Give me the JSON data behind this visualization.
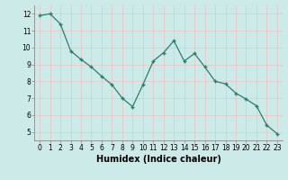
{
  "x": [
    0,
    1,
    2,
    3,
    4,
    5,
    6,
    7,
    8,
    9,
    10,
    11,
    12,
    13,
    14,
    15,
    16,
    17,
    18,
    19,
    20,
    21,
    22,
    23
  ],
  "y": [
    11.9,
    12.0,
    11.4,
    9.8,
    9.3,
    8.85,
    8.3,
    7.8,
    7.0,
    6.5,
    7.8,
    9.2,
    9.7,
    10.4,
    9.2,
    9.65,
    8.85,
    8.0,
    7.85,
    7.3,
    6.95,
    6.55,
    5.4,
    4.9
  ],
  "line_color": "#2d7d6e",
  "marker": "+",
  "marker_size": 3.5,
  "marker_lw": 1.0,
  "line_width": 0.9,
  "xlabel": "Humidex (Indice chaleur)",
  "xlim": [
    -0.5,
    23.5
  ],
  "ylim": [
    4.5,
    12.5
  ],
  "yticks": [
    5,
    6,
    7,
    8,
    9,
    10,
    11,
    12
  ],
  "xticks": [
    0,
    1,
    2,
    3,
    4,
    5,
    6,
    7,
    8,
    9,
    10,
    11,
    12,
    13,
    14,
    15,
    16,
    17,
    18,
    19,
    20,
    21,
    22,
    23
  ],
  "bg_color": "#cceae7",
  "grid_color": "#e8c8c8",
  "label_fontsize": 6.5,
  "tick_fontsize": 5.5,
  "xlabel_fontsize": 7.0
}
